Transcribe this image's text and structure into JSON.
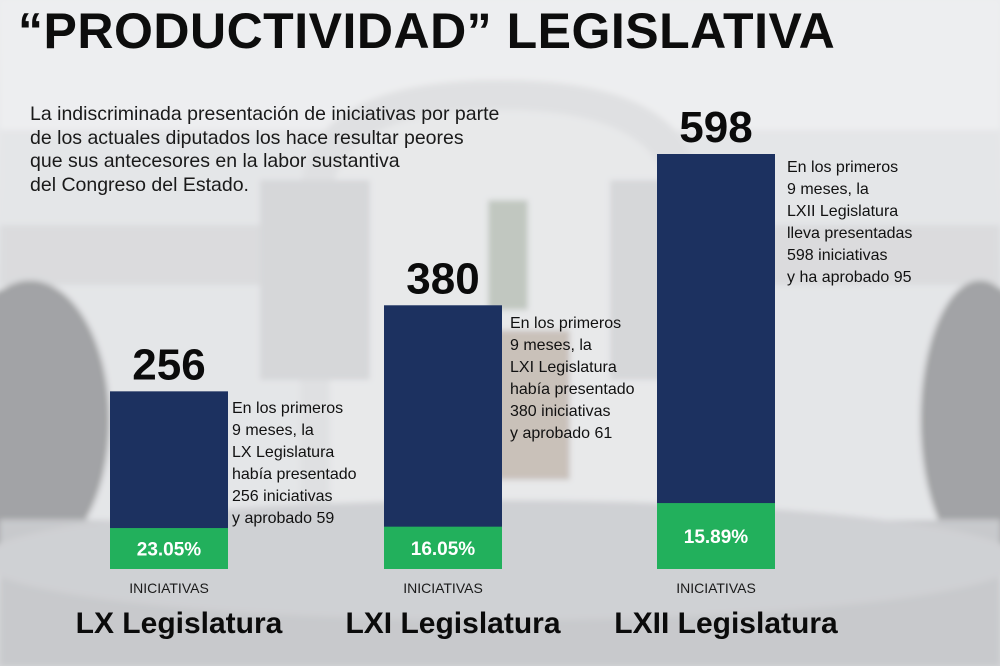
{
  "title": "“PRODUCTIVIDAD” LEGISLATIVA",
  "intro": [
    "La indiscriminada presentación de iniciativas por parte",
    "de los actuales diputados los hace resultar peores",
    "que sus antecesores en la labor sustantiva",
    "del Congreso del Estado."
  ],
  "colors": {
    "bar": "#1c3160",
    "approved": "#22b05c",
    "text": "#0b0b0b"
  },
  "chart_data": {
    "type": "bar",
    "title": "“PRODUCTIVIDAD” LEGISLATIVA",
    "categories": [
      "LX Legislatura",
      "LXI Legislatura",
      "LXII Legislatura"
    ],
    "bar_caption": "INICIATIVAS",
    "series": [
      {
        "values": [
          256,
          380,
          598
        ]
      },
      {
        "values": [
          59,
          61,
          95
        ]
      }
    ],
    "value_labels": [
      "256",
      "380",
      "598"
    ],
    "percent_labels": [
      "23.05%",
      "16.05%",
      "15.89%"
    ],
    "annotations": [
      [
        "En los primeros",
        "9 meses, la",
        "LX Legislatura",
        "había presentado",
        "256 iniciativas",
        "y aprobado 59"
      ],
      [
        "En los primeros",
        "9 meses, la",
        "LXI Legislatura",
        "había presentado",
        "380 iniciativas",
        "y aprobado 61"
      ],
      [
        "En los primeros",
        "9 meses, la",
        "LXII Legislatura",
        "lleva presentadas",
        "598 iniciativas",
        "y ha aprobado 95"
      ]
    ],
    "ylim": [
      0,
      598
    ],
    "grid": false,
    "legend": "none"
  }
}
